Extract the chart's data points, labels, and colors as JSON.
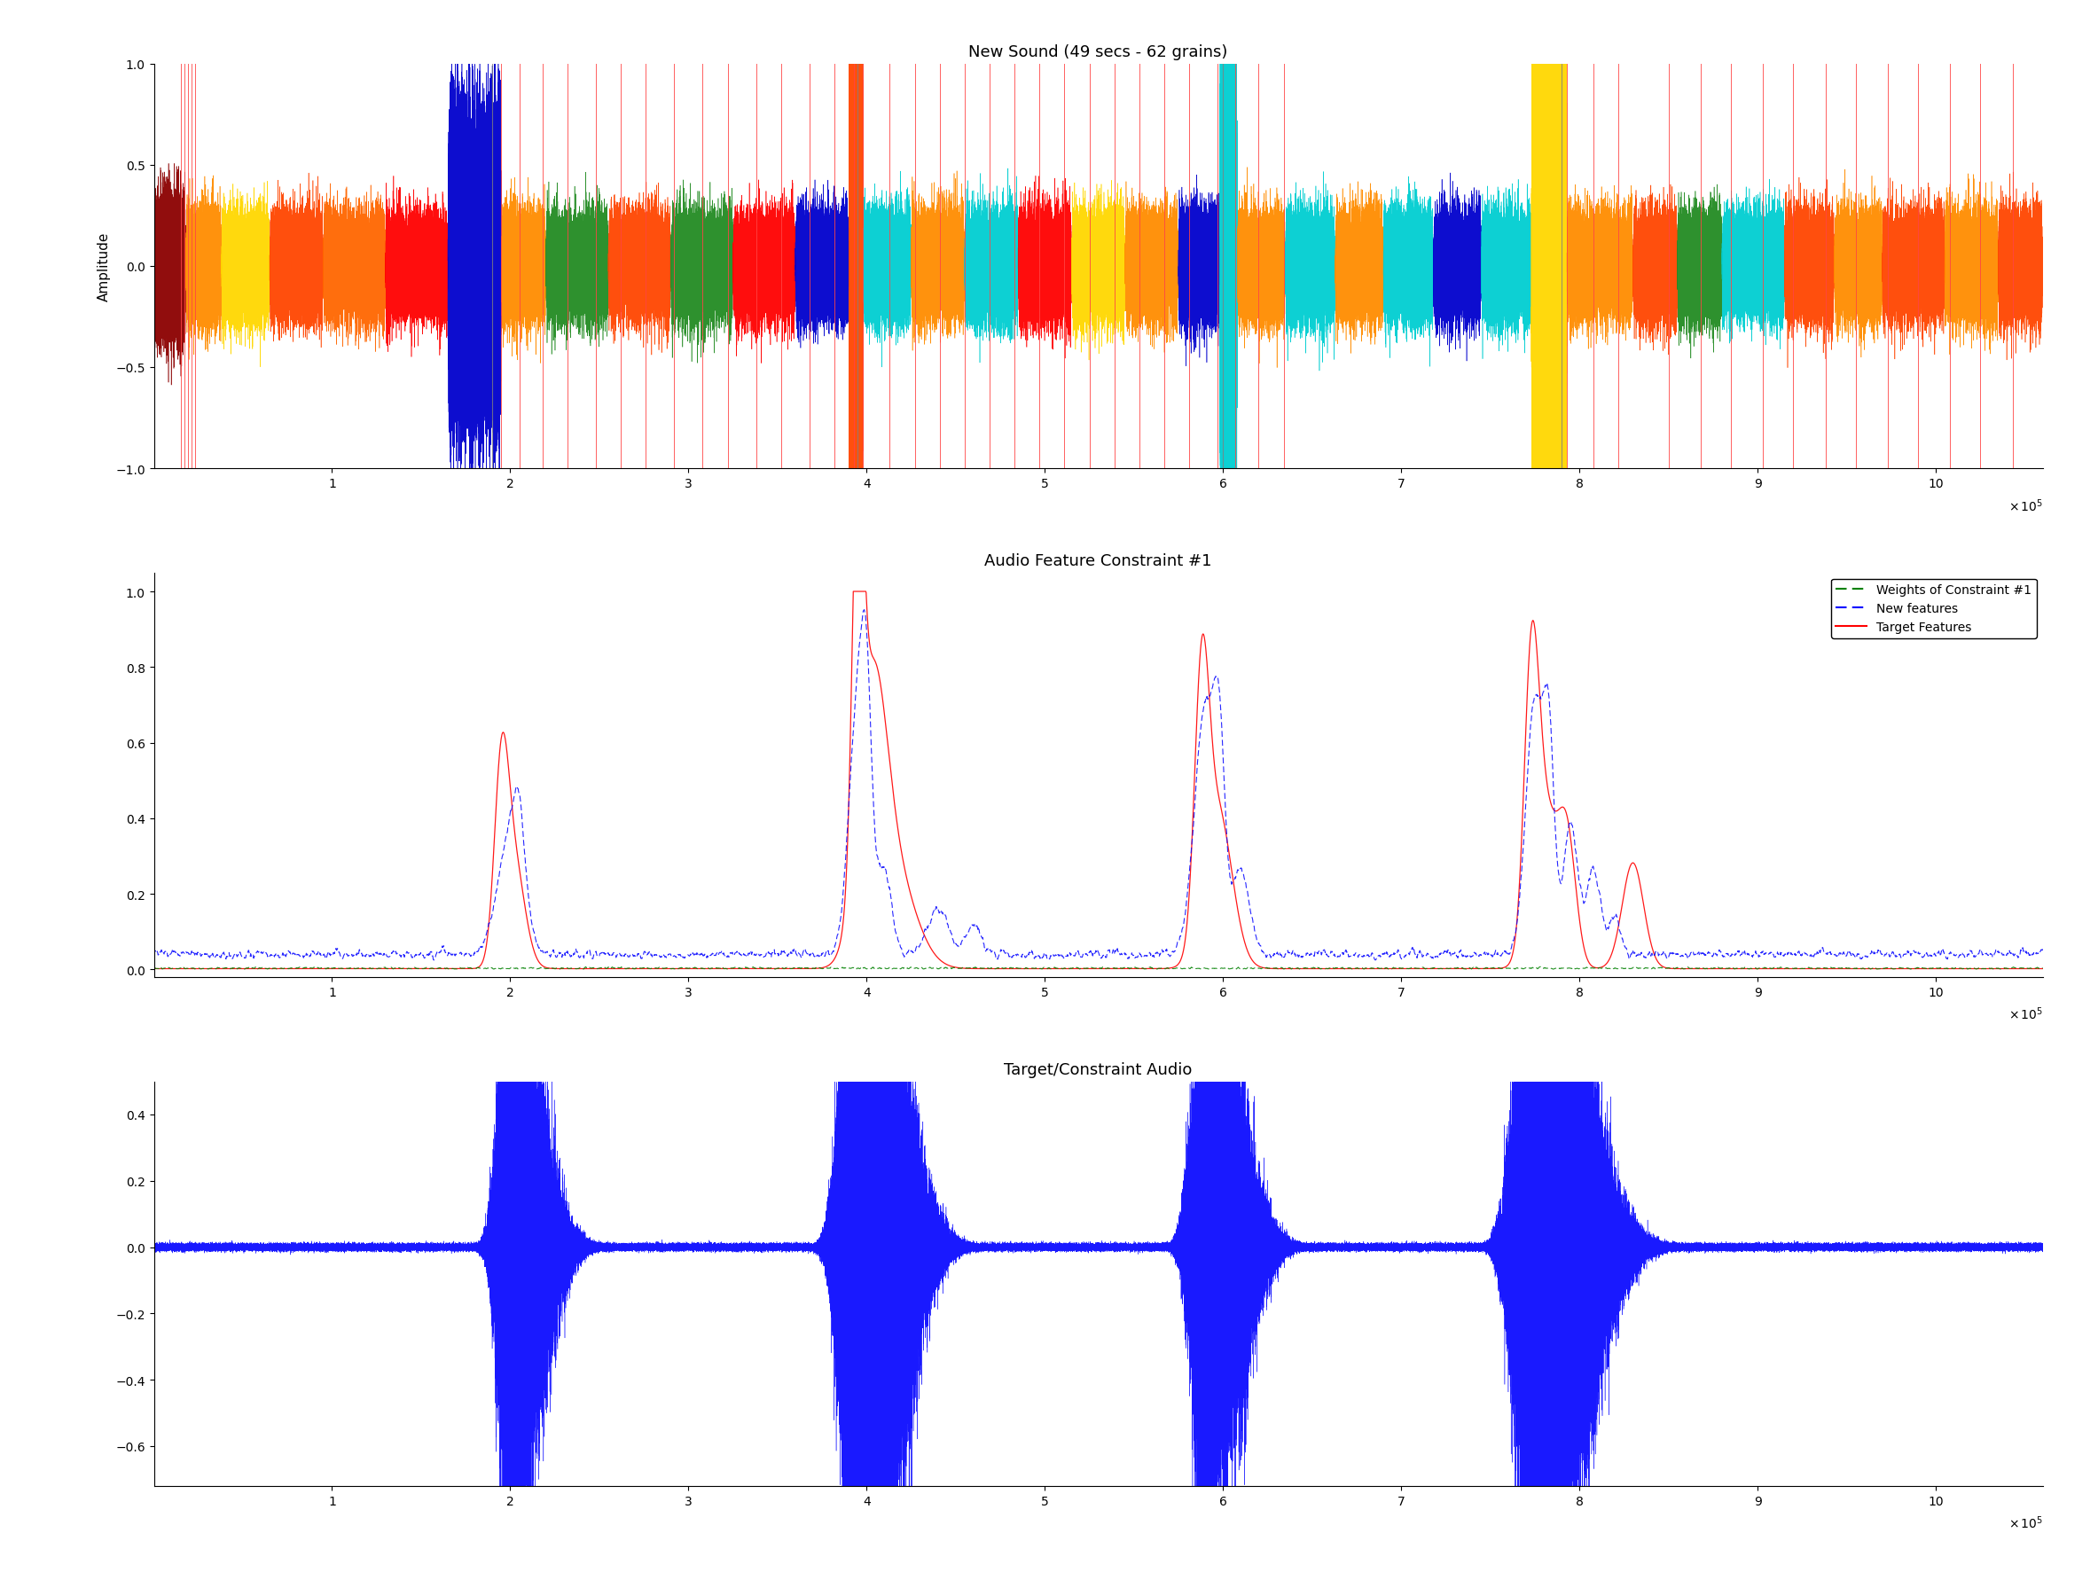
{
  "title1": "New Sound (49 secs - 62 grains)",
  "title2": "Audio Feature Constraint #1",
  "title3": "Target/Constraint Audio",
  "ylabel1": "Amplitude",
  "xmax": 1060000,
  "xmin": 0,
  "xticks": [
    100000,
    200000,
    300000,
    400000,
    500000,
    600000,
    700000,
    800000,
    900000,
    1000000
  ],
  "xticklabels": [
    "1",
    "2",
    "3",
    "4",
    "5",
    "6",
    "7",
    "8",
    "9",
    "10"
  ],
  "plot1_ylim": [
    -1,
    1
  ],
  "plot2_ylim": [
    0,
    1.05
  ],
  "plot3_ylim": [
    -0.72,
    0.5
  ],
  "background_color": "#ffffff",
  "segment_colors_seq": [
    "#8b0000",
    "#ff8c00",
    "#ffd700",
    "#ff4500",
    "#ff6600",
    "#ff0000",
    "#0000cd",
    "#ff8c00",
    "#228b22",
    "#ff4500",
    "#228b22",
    "#ff0000",
    "#0000cd",
    "#ff4500",
    "#00ced1",
    "#ff8c00",
    "#00ced1",
    "#ff0000",
    "#ffd700",
    "#ff8c00",
    "#0000cd",
    "#00ced1",
    "#ff8c00",
    "#00ced1",
    "#ff8c00",
    "#00ced1",
    "#0000cd",
    "#00ced1",
    "#ffd700",
    "#ff8c00",
    "#ff4500",
    "#228b22",
    "#00ced1",
    "#ff4500",
    "#ff8c00",
    "#ff4500",
    "#ff8c00",
    "#ff4500"
  ],
  "segment_boundaries": [
    0,
    18000,
    38000,
    65000,
    95000,
    130000,
    165000,
    195000,
    220000,
    255000,
    290000,
    325000,
    360000,
    390000,
    398000,
    425000,
    455000,
    485000,
    515000,
    545000,
    575000,
    598000,
    608000,
    635000,
    663000,
    690000,
    718000,
    745000,
    773000,
    793000,
    830000,
    855000,
    880000,
    915000,
    943000,
    970000,
    1005000,
    1035000,
    1060000
  ],
  "segment_amplitudes": [
    0.15,
    0.12,
    0.12,
    0.12,
    0.12,
    0.12,
    0.35,
    0.12,
    0.12,
    0.12,
    0.12,
    0.12,
    0.12,
    0.65,
    0.12,
    0.12,
    0.12,
    0.12,
    0.12,
    0.12,
    0.12,
    0.55,
    0.12,
    0.12,
    0.12,
    0.12,
    0.12,
    0.12,
    0.55,
    0.12,
    0.12,
    0.12,
    0.12,
    0.12,
    0.12,
    0.12,
    0.12,
    0.12
  ],
  "red_vlines": [
    15000,
    17000,
    19000,
    21000,
    23000,
    195000,
    205000,
    218000,
    232000,
    248000,
    262000,
    276000,
    292000,
    308000,
    322000,
    338000,
    352000,
    368000,
    382000,
    393000,
    398000,
    413000,
    427000,
    441000,
    455000,
    469000,
    483000,
    497000,
    511000,
    525000,
    539000,
    553000,
    567000,
    581000,
    597000,
    607000,
    620000,
    634000,
    793000,
    808000,
    822000,
    850000,
    868000,
    885000,
    903000,
    920000,
    938000,
    955000,
    973000,
    990000,
    1008000,
    1025000,
    1043000
  ],
  "gray_vlines": [
    190000,
    395000,
    600000,
    790000
  ],
  "legend2_entries": [
    "Weights of Constraint #1",
    "New features",
    "Target Features"
  ],
  "seed1": 42,
  "seed2": 123,
  "seed3": 999
}
